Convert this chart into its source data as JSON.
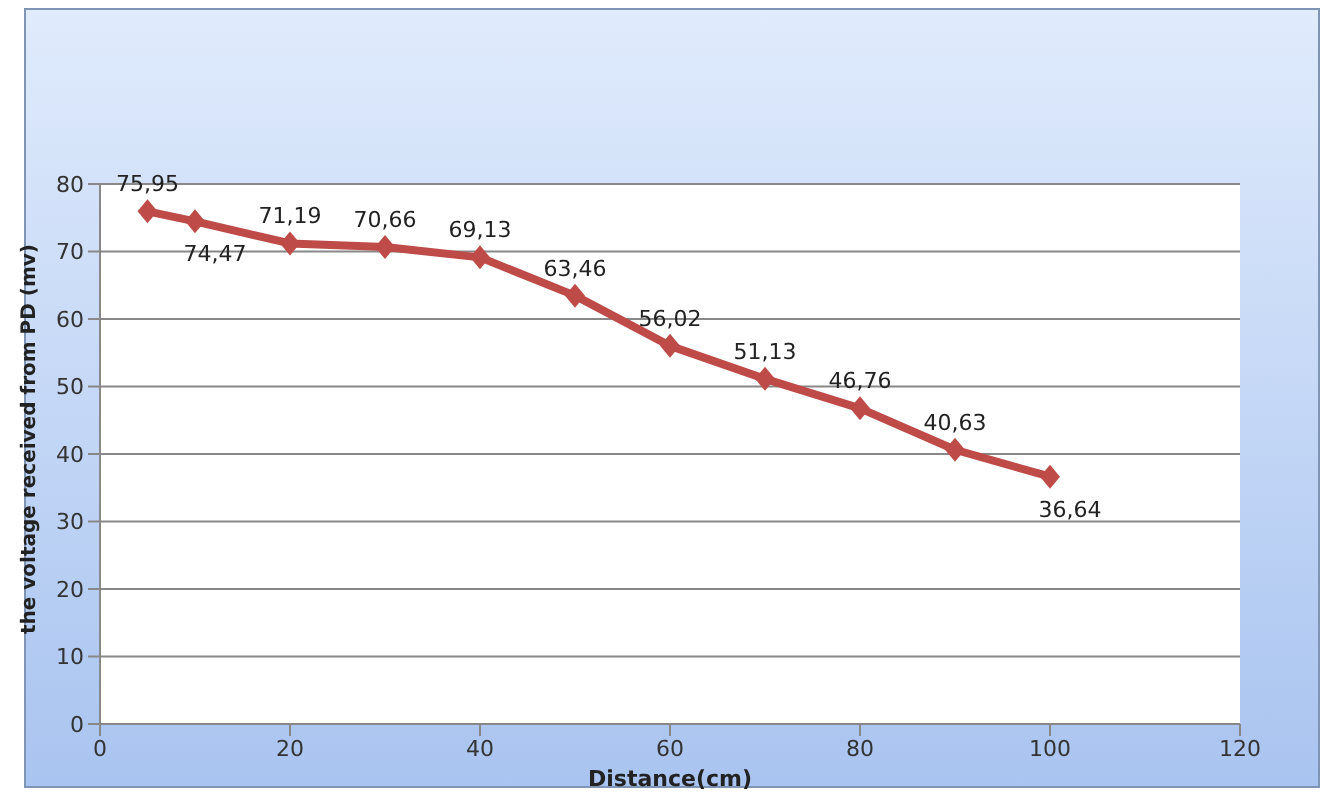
{
  "chart_data": {
    "type": "line",
    "xlabel": "Distance(cm)",
    "ylabel": "the voltage received from PD (mv)",
    "x": [
      5,
      10,
      20,
      30,
      40,
      50,
      60,
      70,
      80,
      90,
      100
    ],
    "series": [
      {
        "color": "#be4b48",
        "values": [
          75.95,
          74.47,
          71.19,
          70.66,
          69.13,
          63.46,
          56.02,
          51.13,
          46.76,
          40.63,
          36.64
        ],
        "value_labels": [
          "75,95",
          "74,47",
          "71,19",
          "70,66",
          "69,13",
          "63,46",
          "56,02",
          "51,13",
          "46,76",
          "40,63",
          "36,64"
        ]
      }
    ],
    "xlim": [
      0,
      120
    ],
    "xticks": [
      0,
      20,
      40,
      60,
      80,
      100,
      120
    ],
    "ylim": [
      0,
      80
    ],
    "yticks": [
      0,
      10,
      20,
      30,
      40,
      50,
      60,
      70,
      80
    ],
    "grid": "y",
    "marker": "diamond",
    "line_style": "solid",
    "legend": false
  }
}
